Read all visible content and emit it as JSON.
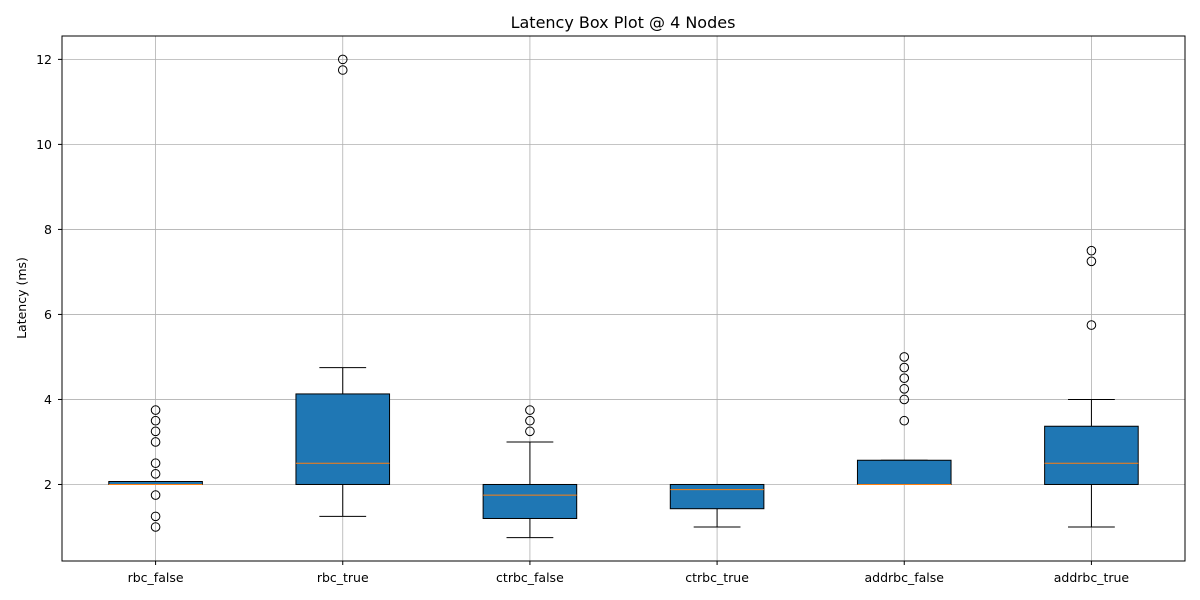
{
  "chart_data": {
    "type": "box",
    "title": "Latency Box Plot @ 4 Nodes",
    "xlabel": "",
    "ylabel": "Latency (ms)",
    "ylim": [
      0.2,
      12.55
    ],
    "yticks": [
      2,
      4,
      6,
      8,
      10,
      12
    ],
    "grid": true,
    "box_color": "#1f77b4",
    "median_color": "#ff7f0e",
    "categories": [
      "rbc_false",
      "rbc_true",
      "ctrbc_false",
      "ctrbc_true",
      "addrbc_false",
      "addrbc_true"
    ],
    "boxes": [
      {
        "label": "rbc_false",
        "whisker_low": 2.0,
        "q1": 2.0,
        "median": 2.0,
        "q3": 2.07,
        "whisker_high": 2.07,
        "outliers": [
          3.75,
          3.5,
          3.25,
          3.0,
          2.5,
          2.25,
          1.75,
          1.25,
          1.0
        ]
      },
      {
        "label": "rbc_true",
        "whisker_low": 1.25,
        "q1": 2.0,
        "median": 2.5,
        "q3": 4.13,
        "whisker_high": 4.75,
        "outliers": [
          12.0,
          11.75
        ]
      },
      {
        "label": "ctrbc_false",
        "whisker_low": 0.75,
        "q1": 1.2,
        "median": 1.75,
        "q3": 2.0,
        "whisker_high": 3.0,
        "outliers": [
          3.75,
          3.5,
          3.25
        ]
      },
      {
        "label": "ctrbc_true",
        "whisker_low": 1.0,
        "q1": 1.43,
        "median": 1.88,
        "q3": 2.0,
        "whisker_high": 2.0,
        "outliers": []
      },
      {
        "label": "addrbc_false",
        "whisker_low": 2.0,
        "q1": 2.0,
        "median": 2.0,
        "q3": 2.57,
        "whisker_high": 2.57,
        "outliers": [
          5.0,
          4.75,
          4.5,
          4.25,
          4.0,
          3.5
        ]
      },
      {
        "label": "addrbc_true",
        "whisker_low": 1.0,
        "q1": 2.0,
        "median": 2.5,
        "q3": 3.37,
        "whisker_high": 4.0,
        "outliers": [
          7.5,
          7.25,
          5.75
        ]
      }
    ]
  }
}
